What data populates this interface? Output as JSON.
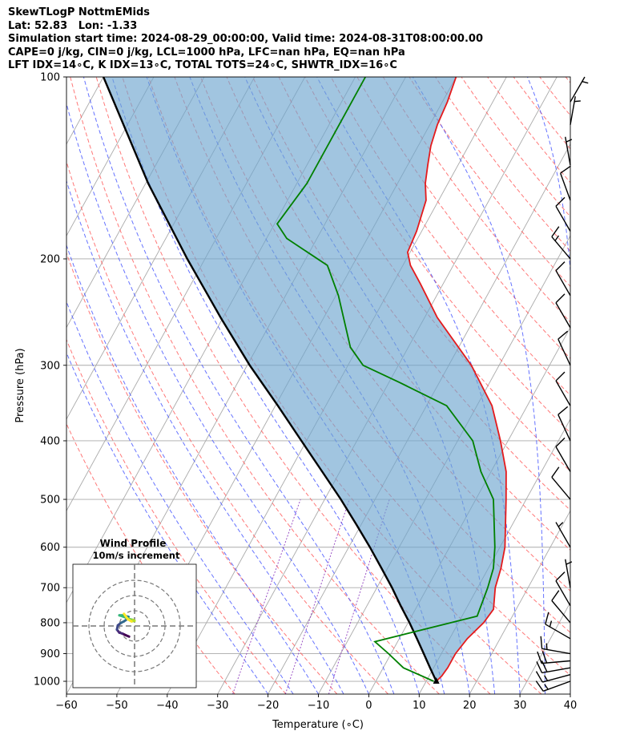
{
  "header": {
    "lines": [
      "SkewTLogP NottmEMids",
      "Lat: 52.83   Lon: -1.33",
      "Simulation start time: 2024-08-29_00:00:00, Valid time: 2024-08-31T08:00:00.00",
      "CAPE=0 j/kg, CIN=0 j/kg, LCL=1000 hPa, LFC=nan hPa, EQ=nan hPa",
      "LFT IDX=14∘C, K IDX=13∘C, TOTAL TOTS=24∘C, SHWTR_IDX=16∘C"
    ]
  },
  "chart_data": {
    "type": "skewt",
    "xlabel": "Temperature (∘C)",
    "ylabel": "Pressure (hPa)",
    "xlim": [
      -60,
      40
    ],
    "ylim": [
      1050,
      100
    ],
    "x_ticks": [
      -60,
      -50,
      -40,
      -30,
      -20,
      -10,
      0,
      10,
      20,
      30,
      40
    ],
    "y_ticks": [
      1000,
      900,
      800,
      700,
      600,
      500,
      400,
      300,
      200,
      100
    ],
    "grid": true,
    "colors": {
      "temperature": "#e41a1c",
      "dewpoint": "#008000",
      "parcel": "#000000",
      "cape_fill": "#6fa6cf",
      "dry_adiabat": "#ff6060",
      "moist_adiabat": "#4050ff",
      "mixing_ratio": "#9040c0",
      "isotherm": "#aaaaaa"
    },
    "temperature": [
      {
        "p": 1000,
        "t": 12.0
      },
      {
        "p": 980,
        "t": 12.5
      },
      {
        "p": 950,
        "t": 12.8
      },
      {
        "p": 900,
        "t": 12.8
      },
      {
        "p": 850,
        "t": 13.5
      },
      {
        "p": 800,
        "t": 15.0
      },
      {
        "p": 760,
        "t": 15.5
      },
      {
        "p": 700,
        "t": 13.5
      },
      {
        "p": 650,
        "t": 12.5
      },
      {
        "p": 600,
        "t": 11.0
      },
      {
        "p": 500,
        "t": 6.0
      },
      {
        "p": 450,
        "t": 3.0
      },
      {
        "p": 400,
        "t": -1.5
      },
      {
        "p": 350,
        "t": -7.0
      },
      {
        "p": 300,
        "t": -15.5
      },
      {
        "p": 250,
        "t": -27.5
      },
      {
        "p": 220,
        "t": -34.5
      },
      {
        "p": 205,
        "t": -38.5
      },
      {
        "p": 195,
        "t": -40.5
      },
      {
        "p": 180,
        "t": -41.0
      },
      {
        "p": 160,
        "t": -42.5
      },
      {
        "p": 150,
        "t": -44.5
      },
      {
        "p": 140,
        "t": -46.0
      },
      {
        "p": 130,
        "t": -47.5
      },
      {
        "p": 120,
        "t": -48.5
      },
      {
        "p": 110,
        "t": -49.0
      },
      {
        "p": 100,
        "t": -50.0
      }
    ],
    "dewpoint": [
      {
        "p": 1000,
        "t": 11.5
      },
      {
        "p": 950,
        "t": 4.0
      },
      {
        "p": 900,
        "t": -0.5
      },
      {
        "p": 860,
        "t": -4.5
      },
      {
        "p": 780,
        "t": 13.0
      },
      {
        "p": 700,
        "t": 12.0
      },
      {
        "p": 650,
        "t": 11.0
      },
      {
        "p": 600,
        "t": 9.0
      },
      {
        "p": 500,
        "t": 3.5
      },
      {
        "p": 450,
        "t": -2.0
      },
      {
        "p": 400,
        "t": -7.0
      },
      {
        "p": 350,
        "t": -16.0
      },
      {
        "p": 320,
        "t": -28.0
      },
      {
        "p": 300,
        "t": -37.0
      },
      {
        "p": 280,
        "t": -41.5
      },
      {
        "p": 230,
        "t": -49.5
      },
      {
        "p": 205,
        "t": -55.0
      },
      {
        "p": 185,
        "t": -66.0
      },
      {
        "p": 175,
        "t": -69.5
      },
      {
        "p": 150,
        "t": -68.0
      },
      {
        "p": 100,
        "t": -68.0
      }
    ],
    "parcel": [
      {
        "p": 1000,
        "t": 12.0
      },
      {
        "p": 950,
        "t": 9.3
      },
      {
        "p": 900,
        "t": 6.5
      },
      {
        "p": 850,
        "t": 3.5
      },
      {
        "p": 800,
        "t": 0.3
      },
      {
        "p": 750,
        "t": -3.3
      },
      {
        "p": 700,
        "t": -7.0
      },
      {
        "p": 650,
        "t": -11.2
      },
      {
        "p": 600,
        "t": -15.8
      },
      {
        "p": 550,
        "t": -21.0
      },
      {
        "p": 500,
        "t": -26.8
      },
      {
        "p": 450,
        "t": -33.5
      },
      {
        "p": 400,
        "t": -41.0
      },
      {
        "p": 350,
        "t": -49.5
      },
      {
        "p": 300,
        "t": -59.5
      },
      {
        "p": 250,
        "t": -70.5
      },
      {
        "p": 200,
        "t": -83.5
      },
      {
        "p": 150,
        "t": -99.5
      },
      {
        "p": 100,
        "t": -120.0
      }
    ],
    "wind_barbs": [
      {
        "p": 1000,
        "speed_kt": 15,
        "dir": 250
      },
      {
        "p": 975,
        "speed_kt": 15,
        "dir": 255
      },
      {
        "p": 950,
        "speed_kt": 20,
        "dir": 260
      },
      {
        "p": 925,
        "speed_kt": 20,
        "dir": 265
      },
      {
        "p": 900,
        "speed_kt": 15,
        "dir": 280
      },
      {
        "p": 850,
        "speed_kt": 15,
        "dir": 300
      },
      {
        "p": 800,
        "speed_kt": 10,
        "dir": 320
      },
      {
        "p": 750,
        "speed_kt": 10,
        "dir": 330
      },
      {
        "p": 700,
        "speed_kt": 5,
        "dir": 350
      },
      {
        "p": 600,
        "speed_kt": 5,
        "dir": 330
      },
      {
        "p": 500,
        "speed_kt": 10,
        "dir": 320
      },
      {
        "p": 450,
        "speed_kt": 10,
        "dir": 330
      },
      {
        "p": 400,
        "speed_kt": 10,
        "dir": 335
      },
      {
        "p": 350,
        "speed_kt": 10,
        "dir": 330
      },
      {
        "p": 300,
        "speed_kt": 10,
        "dir": 335
      },
      {
        "p": 260,
        "speed_kt": 10,
        "dir": 330
      },
      {
        "p": 230,
        "speed_kt": 10,
        "dir": 330
      },
      {
        "p": 200,
        "speed_kt": 15,
        "dir": 320
      },
      {
        "p": 180,
        "speed_kt": 10,
        "dir": 330
      },
      {
        "p": 160,
        "speed_kt": 10,
        "dir": 340
      },
      {
        "p": 140,
        "speed_kt": 5,
        "dir": 350
      },
      {
        "p": 120,
        "speed_kt": 5,
        "dir": 10
      },
      {
        "p": 110,
        "speed_kt": 5,
        "dir": 30
      }
    ],
    "hodograph": {
      "title": "Wind Profile",
      "subtitle": "10m/s increment",
      "rings_ms": [
        10,
        20,
        30
      ],
      "points_ms": [
        {
          "u": -1.8,
          "v": -3.5
        },
        {
          "u": -3.0,
          "v": -3.0
        },
        {
          "u": -4.0,
          "v": -2.5
        },
        {
          "u": -5.0,
          "v": -2.2
        },
        {
          "u": -5.8,
          "v": -1.2
        },
        {
          "u": -5.5,
          "v": 0.2
        },
        {
          "u": -4.5,
          "v": 1.0
        },
        {
          "u": -3.5,
          "v": 1.5
        },
        {
          "u": -2.5,
          "v": 2.2
        },
        {
          "u": -2.0,
          "v": 3.0
        },
        {
          "u": -2.8,
          "v": 3.2
        },
        {
          "u": -3.5,
          "v": 3.5
        },
        {
          "u": -5.0,
          "v": 3.5
        },
        {
          "u": -3.5,
          "v": 3.0
        },
        {
          "u": -2.5,
          "v": 2.6
        },
        {
          "u": -1.5,
          "v": 2.2
        },
        {
          "u": -0.5,
          "v": 2.0
        },
        {
          "u": 0.0,
          "v": 1.7
        },
        {
          "u": -1.0,
          "v": 1.5
        },
        {
          "u": -2.2,
          "v": 2.2
        },
        {
          "u": -3.5,
          "v": 4.0
        }
      ]
    }
  }
}
